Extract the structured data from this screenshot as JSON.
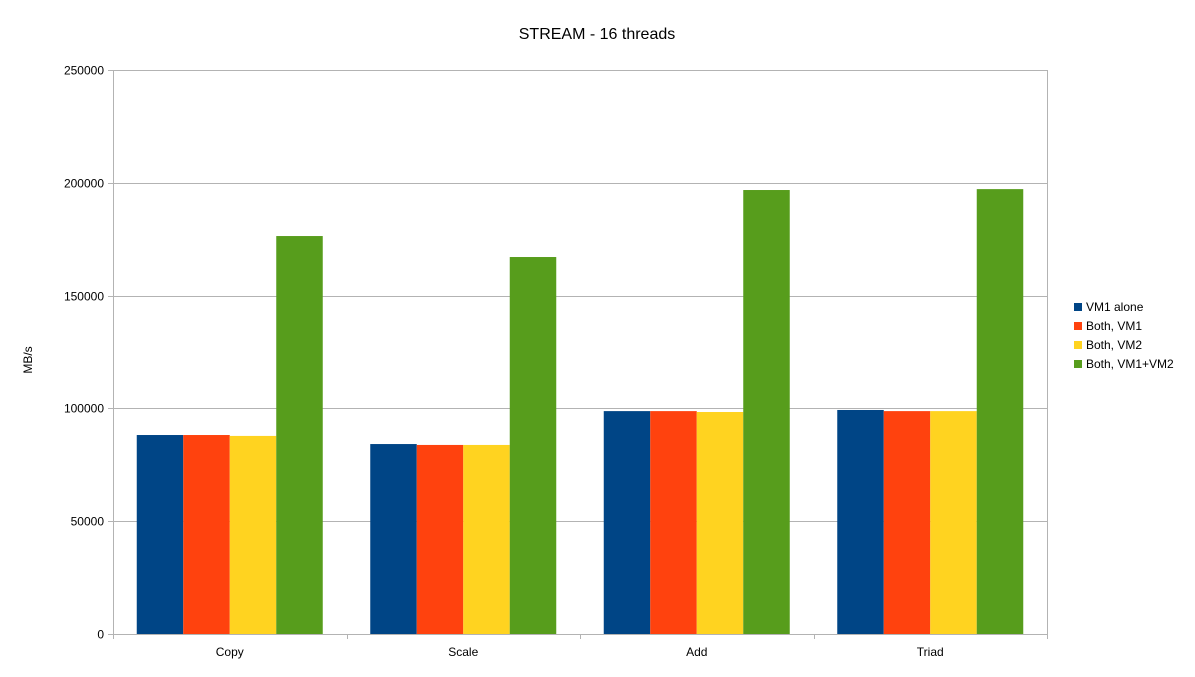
{
  "chart_data": {
    "type": "bar",
    "title": "STREAM - 16 threads",
    "xlabel": "",
    "ylabel": "MB/s",
    "ylim": [
      0,
      250000
    ],
    "yticks": [
      0,
      50000,
      100000,
      150000,
      200000,
      250000
    ],
    "grid": true,
    "legend_position": "right",
    "categories": [
      "Copy",
      "Scale",
      "Add",
      "Triad"
    ],
    "series": [
      {
        "name": "VM1 alone",
        "color": "#004586",
        "values": [
          88200,
          84200,
          98800,
          99300
        ]
      },
      {
        "name": "Both, VM1",
        "color": "#ff420e",
        "values": [
          88200,
          83800,
          98800,
          98800
        ]
      },
      {
        "name": "Both, VM2",
        "color": "#ffd320",
        "values": [
          87800,
          83800,
          98400,
          98800
        ]
      },
      {
        "name": "Both, VM1+VM2",
        "color": "#579d1c",
        "values": [
          176400,
          167100,
          196800,
          197200
        ]
      }
    ]
  }
}
